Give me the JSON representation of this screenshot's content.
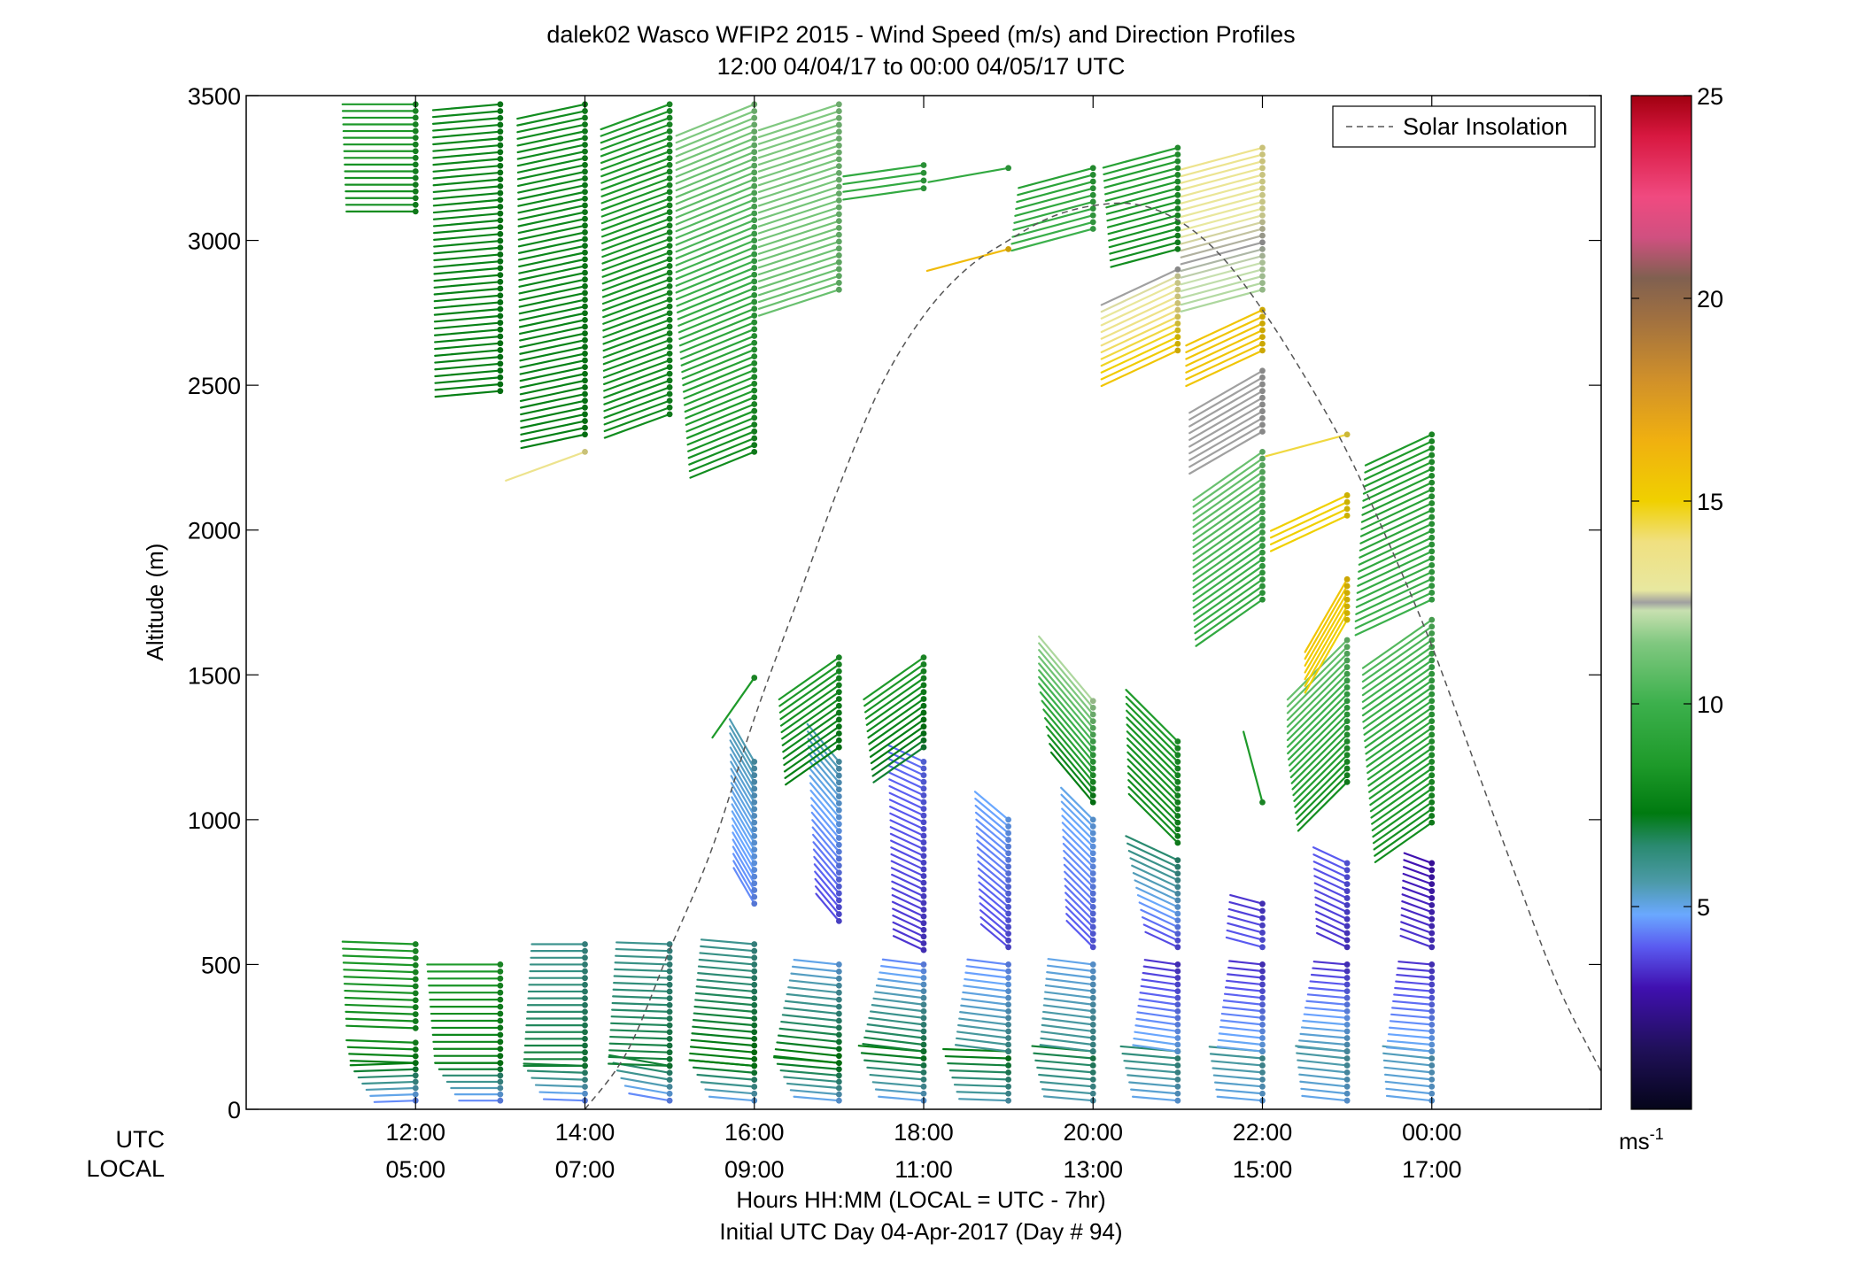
{
  "chart_data": {
    "type": "wind-profile",
    "title_line1": "dalek02 Wasco WFIP2 2015 - Wind Speed (m/s) and Direction Profiles",
    "title_line2": "12:00 04/04/17 to 00:00 04/05/17  UTC",
    "ylabel": "Altitude (m)",
    "ylim": [
      0,
      3500
    ],
    "y_ticks": [
      0,
      500,
      1000,
      1500,
      2000,
      2500,
      3000,
      3500
    ],
    "x_range_hours": [
      10.0,
      26.0
    ],
    "x_ticks": [
      {
        "hour": 12,
        "utc": "12:00",
        "local": "05:00"
      },
      {
        "hour": 14,
        "utc": "14:00",
        "local": "07:00"
      },
      {
        "hour": 16,
        "utc": "16:00",
        "local": "09:00"
      },
      {
        "hour": 18,
        "utc": "18:00",
        "local": "11:00"
      },
      {
        "hour": 20,
        "utc": "20:00",
        "local": "13:00"
      },
      {
        "hour": 22,
        "utc": "22:00",
        "local": "15:00"
      },
      {
        "hour": 24,
        "utc": "00:00",
        "local": "17:00"
      }
    ],
    "row_label_utc": "UTC",
    "row_label_local": "LOCAL",
    "xlabel_line1": "Hours HH:MM  (LOCAL = UTC - 7hr)",
    "xlabel_line2": "Initial UTC Day 04-Apr-2017 (Day # 94)",
    "legend_label": "Solar Insolation",
    "legend_placement": "top-right",
    "colorbar": {
      "min": 0,
      "max": 25,
      "ticks": [
        5,
        10,
        15,
        20,
        25
      ],
      "unit_base": "ms",
      "unit_exp": "-1",
      "stops": [
        {
          "v": 0,
          "c": "#05051a"
        },
        {
          "v": 1.5,
          "c": "#20105a"
        },
        {
          "v": 3,
          "c": "#4010b0"
        },
        {
          "v": 4,
          "c": "#5a5af0"
        },
        {
          "v": 4.8,
          "c": "#6aa8ff"
        },
        {
          "v": 5.6,
          "c": "#4c9aa8"
        },
        {
          "v": 6.5,
          "c": "#2a8a70"
        },
        {
          "v": 7.3,
          "c": "#007a10"
        },
        {
          "v": 8.5,
          "c": "#1e9a2a"
        },
        {
          "v": 10,
          "c": "#3cb04c"
        },
        {
          "v": 11.5,
          "c": "#80c880"
        },
        {
          "v": 12.3,
          "c": "#c8e0b0"
        },
        {
          "v": 12.5,
          "c": "#a0a0a0"
        },
        {
          "v": 12.8,
          "c": "#e8e8a0"
        },
        {
          "v": 14,
          "c": "#f0e080"
        },
        {
          "v": 15,
          "c": "#f0d000"
        },
        {
          "v": 16.5,
          "c": "#f0b010"
        },
        {
          "v": 18,
          "c": "#d0902a"
        },
        {
          "v": 19.5,
          "c": "#a07040"
        },
        {
          "v": 20.5,
          "c": "#806050"
        },
        {
          "v": 21.5,
          "c": "#d05080"
        },
        {
          "v": 22.5,
          "c": "#f04a80"
        },
        {
          "v": 24,
          "c": "#d81840"
        },
        {
          "v": 25,
          "c": "#a00010"
        }
      ]
    },
    "insolation_curve": {
      "style": "dashed",
      "color": "#555555",
      "hours": [
        14.0,
        14.5,
        15.0,
        15.5,
        16.0,
        16.5,
        17.0,
        17.5,
        18.0,
        18.5,
        19.0,
        19.5,
        20.0,
        20.5,
        21.0,
        21.5,
        22.0,
        22.5,
        23.0,
        23.5,
        24.0,
        24.5,
        25.0,
        25.5,
        26.0
      ],
      "altitude_m": [
        0,
        200,
        550,
        900,
        1350,
        1750,
        2150,
        2500,
        2740,
        2900,
        3000,
        3080,
        3120,
        3125,
        3070,
        2950,
        2760,
        2530,
        2270,
        1950,
        1600,
        1200,
        800,
        420,
        130
      ]
    },
    "wind_profiles": [
      {
        "hour": 12.0,
        "segments": [
          {
            "alt_from": 30,
            "alt_to": 160,
            "dir_deg": 268,
            "speed_from": 4.5,
            "speed_to": 7.5
          },
          {
            "alt_from": 160,
            "alt_to": 230,
            "dir_deg": 272,
            "speed_from": 7.5,
            "speed_to": 8.0
          },
          {
            "alt_from": 280,
            "alt_to": 570,
            "dir_deg": 272,
            "speed_from": 8.0,
            "speed_to": 8.5
          },
          {
            "alt_from": 3100,
            "alt_to": 3470,
            "dir_deg": 270,
            "speed_from": 8.0,
            "speed_to": 8.5
          }
        ]
      },
      {
        "hour": 13.0,
        "segments": [
          {
            "alt_from": 30,
            "alt_to": 160,
            "dir_deg": 270,
            "speed_from": 4.5,
            "speed_to": 7.5
          },
          {
            "alt_from": 160,
            "alt_to": 500,
            "dir_deg": 270,
            "speed_from": 7.5,
            "speed_to": 8.5
          },
          {
            "alt_from": 2480,
            "alt_to": 3470,
            "dir_deg": 265,
            "speed_from": 7.5,
            "speed_to": 7.8
          }
        ]
      },
      {
        "hour": 14.0,
        "segments": [
          {
            "alt_from": 30,
            "alt_to": 150,
            "dir_deg": 272,
            "speed_from": 4.5,
            "speed_to": 7.0
          },
          {
            "alt_from": 150,
            "alt_to": 570,
            "dir_deg": 270,
            "speed_from": 7.0,
            "speed_to": 6.0
          },
          {
            "alt_from": 2270,
            "alt_to": 2270,
            "dir_deg": 250,
            "speed_from": 13.5,
            "speed_to": 13.5
          },
          {
            "alt_from": 2330,
            "alt_to": 3470,
            "dir_deg": 258,
            "speed_from": 7.5,
            "speed_to": 8.0
          }
        ]
      },
      {
        "hour": 15.0,
        "segments": [
          {
            "alt_from": 30,
            "alt_to": 150,
            "dir_deg": 280,
            "speed_from": 4.5,
            "speed_to": 7.0
          },
          {
            "alt_from": 150,
            "alt_to": 570,
            "dir_deg": 272,
            "speed_from": 7.0,
            "speed_to": 6.0
          },
          {
            "alt_from": 2400,
            "alt_to": 3470,
            "dir_deg": 250,
            "speed_from": 8.0,
            "speed_to": 8.5
          }
        ]
      },
      {
        "hour": 16.0,
        "segments": [
          {
            "alt_from": 30,
            "alt_to": 150,
            "dir_deg": 275,
            "speed_from": 5.0,
            "speed_to": 7.5
          },
          {
            "alt_from": 150,
            "alt_to": 570,
            "dir_deg": 275,
            "speed_from": 7.5,
            "speed_to": 6.0
          },
          {
            "alt_from": 710,
            "alt_to": 1200,
            "dir_deg": 330,
            "speed_from": 4.5,
            "speed_to": 5.5
          },
          {
            "alt_from": 1490,
            "alt_to": 1490,
            "dir_deg": 215,
            "speed_from": 8.5,
            "speed_to": 8.5
          },
          {
            "alt_from": 2270,
            "alt_to": 3470,
            "dir_deg": 248,
            "speed_from": 8.0,
            "speed_to": 11.5
          }
        ]
      },
      {
        "hour": 17.0,
        "segments": [
          {
            "alt_from": 30,
            "alt_to": 160,
            "dir_deg": 275,
            "speed_from": 5.0,
            "speed_to": 7.5
          },
          {
            "alt_from": 160,
            "alt_to": 500,
            "dir_deg": 276,
            "speed_from": 7.5,
            "speed_to": 5.0
          },
          {
            "alt_from": 650,
            "alt_to": 1200,
            "dir_deg": 320,
            "speed_from": 3.8,
            "speed_to": 5.5
          },
          {
            "alt_from": 1250,
            "alt_to": 1560,
            "dir_deg": 235,
            "speed_from": 7.5,
            "speed_to": 8.5
          },
          {
            "alt_from": 2830,
            "alt_to": 3470,
            "dir_deg": 252,
            "speed_from": 11.0,
            "speed_to": 11.5
          }
        ]
      },
      {
        "hour": 18.0,
        "segments": [
          {
            "alt_from": 30,
            "alt_to": 200,
            "dir_deg": 275,
            "speed_from": 5.0,
            "speed_to": 7.5
          },
          {
            "alt_from": 200,
            "alt_to": 500,
            "dir_deg": 277,
            "speed_from": 7.0,
            "speed_to": 4.5
          },
          {
            "alt_from": 550,
            "alt_to": 1200,
            "dir_deg": 295,
            "speed_from": 3.5,
            "speed_to": 4.2
          },
          {
            "alt_from": 1250,
            "alt_to": 1560,
            "dir_deg": 235,
            "speed_from": 7.0,
            "speed_to": 8.5
          },
          {
            "alt_from": 3180,
            "alt_to": 3260,
            "dir_deg": 262,
            "speed_from": 9.5,
            "speed_to": 9.5
          }
        ]
      },
      {
        "hour": 19.0,
        "segments": [
          {
            "alt_from": 30,
            "alt_to": 200,
            "dir_deg": 272,
            "speed_from": 5.5,
            "speed_to": 7.5
          },
          {
            "alt_from": 200,
            "alt_to": 500,
            "dir_deg": 277,
            "speed_from": 6.0,
            "speed_to": 4.5
          },
          {
            "alt_from": 560,
            "alt_to": 1000,
            "dir_deg": 310,
            "speed_from": 3.8,
            "speed_to": 4.8
          },
          {
            "alt_from": 2970,
            "alt_to": 2970,
            "dir_deg": 255,
            "speed_from": 16.0,
            "speed_to": 16.0
          },
          {
            "alt_from": 3250,
            "alt_to": 3250,
            "dir_deg": 260,
            "speed_from": 9.5,
            "speed_to": 9.5
          }
        ]
      },
      {
        "hour": 20.0,
        "segments": [
          {
            "alt_from": 30,
            "alt_to": 200,
            "dir_deg": 275,
            "speed_from": 5.5,
            "speed_to": 7.0
          },
          {
            "alt_from": 200,
            "alt_to": 500,
            "dir_deg": 277,
            "speed_from": 6.0,
            "speed_to": 5.0
          },
          {
            "alt_from": 560,
            "alt_to": 1000,
            "dir_deg": 315,
            "speed_from": 4.0,
            "speed_to": 5.0
          },
          {
            "alt_from": 1060,
            "alt_to": 1410,
            "dir_deg": 320,
            "speed_from": 7.5,
            "speed_to": 12.0
          },
          {
            "alt_from": 3040,
            "alt_to": 3250,
            "dir_deg": 255,
            "speed_from": 10.0,
            "speed_to": 9.0
          }
        ]
      },
      {
        "hour": 21.0,
        "segments": [
          {
            "alt_from": 30,
            "alt_to": 200,
            "dir_deg": 275,
            "speed_from": 5.0,
            "speed_to": 6.5
          },
          {
            "alt_from": 200,
            "alt_to": 500,
            "dir_deg": 278,
            "speed_from": 5.0,
            "speed_to": 3.5
          },
          {
            "alt_from": 560,
            "alt_to": 860,
            "dir_deg": 295,
            "speed_from": 3.8,
            "speed_to": 6.5
          },
          {
            "alt_from": 920,
            "alt_to": 1270,
            "dir_deg": 315,
            "speed_from": 8.0,
            "speed_to": 8.5
          },
          {
            "alt_from": 2620,
            "alt_to": 2900,
            "dir_deg": 245,
            "speed_from": 15.5,
            "speed_to": 12.5
          },
          {
            "alt_from": 2970,
            "alt_to": 3320,
            "dir_deg": 255,
            "speed_from": 8.0,
            "speed_to": 9.0
          }
        ]
      },
      {
        "hour": 22.0,
        "segments": [
          {
            "alt_from": 30,
            "alt_to": 200,
            "dir_deg": 275,
            "speed_from": 5.0,
            "speed_to": 6.0
          },
          {
            "alt_from": 200,
            "alt_to": 500,
            "dir_deg": 276,
            "speed_from": 5.0,
            "speed_to": 3.5
          },
          {
            "alt_from": 560,
            "alt_to": 710,
            "dir_deg": 285,
            "speed_from": 4.0,
            "speed_to": 3.5
          },
          {
            "alt_from": 1060,
            "alt_to": 1060,
            "dir_deg": 345,
            "speed_from": 8.5,
            "speed_to": 8.5
          },
          {
            "alt_from": 1760,
            "alt_to": 2270,
            "dir_deg": 235,
            "speed_from": 9.5,
            "speed_to": 11.0
          },
          {
            "alt_from": 2340,
            "alt_to": 2550,
            "dir_deg": 240,
            "speed_from": 12.5,
            "speed_to": 12.5
          },
          {
            "alt_from": 2620,
            "alt_to": 2760,
            "dir_deg": 245,
            "speed_from": 15.5,
            "speed_to": 15.5
          },
          {
            "alt_from": 2830,
            "alt_to": 3320,
            "dir_deg": 255,
            "speed_from": 12.0,
            "speed_to": 13.5
          }
        ]
      },
      {
        "hour": 23.0,
        "segments": [
          {
            "alt_from": 30,
            "alt_to": 200,
            "dir_deg": 276,
            "speed_from": 5.0,
            "speed_to": 5.8
          },
          {
            "alt_from": 200,
            "alt_to": 500,
            "dir_deg": 275,
            "speed_from": 5.5,
            "speed_to": 3.5
          },
          {
            "alt_from": 560,
            "alt_to": 850,
            "dir_deg": 295,
            "speed_from": 3.5,
            "speed_to": 4.0
          },
          {
            "alt_from": 1130,
            "alt_to": 1620,
            "dir_deg": 225,
            "speed_from": 8.0,
            "speed_to": 11.0
          },
          {
            "alt_from": 1690,
            "alt_to": 1830,
            "dir_deg": 210,
            "speed_from": 15.0,
            "speed_to": 15.5
          },
          {
            "alt_from": 2050,
            "alt_to": 2120,
            "dir_deg": 245,
            "speed_from": 15.0,
            "speed_to": 15.0
          },
          {
            "alt_from": 2330,
            "alt_to": 2330,
            "dir_deg": 255,
            "speed_from": 14.5,
            "speed_to": 14.5
          }
        ]
      },
      {
        "hour": 24.0,
        "segments": [
          {
            "alt_from": 30,
            "alt_to": 200,
            "dir_deg": 276,
            "speed_from": 5.0,
            "speed_to": 5.5
          },
          {
            "alt_from": 200,
            "alt_to": 500,
            "dir_deg": 275,
            "speed_from": 5.0,
            "speed_to": 3.5
          },
          {
            "alt_from": 560,
            "alt_to": 850,
            "dir_deg": 290,
            "speed_from": 3.5,
            "speed_to": 3.0
          },
          {
            "alt_from": 990,
            "alt_to": 1690,
            "dir_deg": 235,
            "speed_from": 8.0,
            "speed_to": 10.5
          },
          {
            "alt_from": 1760,
            "alt_to": 2330,
            "dir_deg": 245,
            "speed_from": 10.0,
            "speed_to": 8.5
          }
        ]
      }
    ]
  }
}
